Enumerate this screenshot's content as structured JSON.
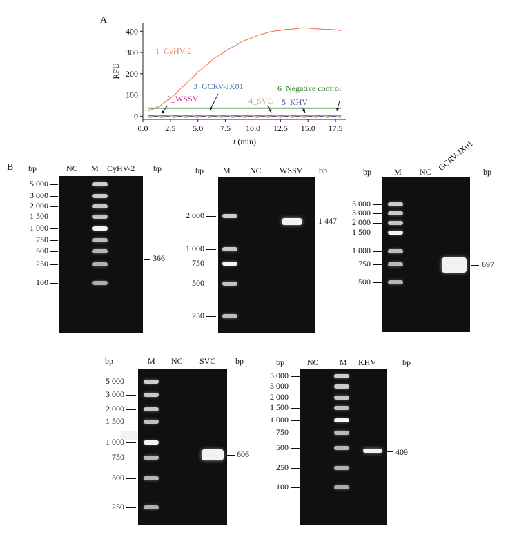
{
  "panel_a": {
    "letter": "A",
    "chart_data": {
      "type": "line",
      "ylabel": "RFU",
      "xlabel_var": "t",
      "xlabel_unit": " (min)",
      "xlim": [
        0,
        18.5
      ],
      "ylim": [
        -15,
        440
      ],
      "xticks": [
        0.0,
        2.5,
        5.0,
        7.5,
        10.0,
        12.5,
        15.0,
        17.5
      ],
      "xtick_labels": [
        "0.0",
        "2.5",
        "5.0",
        "7.5",
        "10.0",
        "12.5",
        "15.0",
        "17.5"
      ],
      "yticks": [
        0,
        100,
        200,
        300,
        400
      ],
      "ytick_labels": [
        "0",
        "100",
        "200",
        "300",
        "400"
      ],
      "series": [
        {
          "name": "1_CyHV-2",
          "color": "#f07a52",
          "x": [
            0.5,
            1,
            1.5,
            2,
            2.5,
            3,
            3.5,
            4,
            4.5,
            5,
            5.5,
            6,
            6.5,
            7,
            7.5,
            8,
            8.5,
            9,
            9.5,
            10,
            10.5,
            11,
            11.5,
            12,
            12.5,
            13,
            13.5,
            14,
            14.5,
            15,
            15.5,
            16,
            16.5,
            17,
            17.5,
            18
          ],
          "y": [
            25,
            35,
            48,
            65,
            85,
            108,
            132,
            158,
            182,
            207,
            230,
            252,
            272,
            290,
            306,
            322,
            336,
            350,
            362,
            372,
            381,
            390,
            396,
            401,
            405,
            408,
            410,
            413,
            415,
            416,
            412,
            410,
            410,
            408,
            406,
            404
          ]
        },
        {
          "name": "2_WSSV",
          "color": "#c2308a",
          "x": [
            0.5,
            18
          ],
          "y": [
            2,
            2
          ]
        },
        {
          "name": "3_GCRV-JX01",
          "color": "#4c79b5",
          "x": [
            0.5,
            18
          ],
          "y": [
            4,
            4
          ]
        },
        {
          "name": "4_SVC",
          "color": "#b8a89a",
          "x": [
            0.5,
            18
          ],
          "y": [
            1,
            1
          ]
        },
        {
          "name": "5_KHV",
          "color": "#5a3f95",
          "x": [
            0.5,
            18
          ],
          "y": [
            -3,
            -3
          ]
        },
        {
          "name": "6_Negative control",
          "color": "#2d7d2d",
          "x": [
            0.5,
            18
          ],
          "y": [
            38,
            38
          ]
        }
      ]
    }
  },
  "panel_b": {
    "letter": "B",
    "gels": [
      {
        "id": "cyhv2",
        "left_bp": "bp",
        "right_bp": "bp",
        "lanes": [
          "NC",
          "M",
          "CyHV-2"
        ],
        "markers": [
          "5 000",
          "3 000",
          "2 000",
          "1 500",
          "1 000",
          "750",
          "500",
          "250",
          "100"
        ],
        "product": "366"
      },
      {
        "id": "wssv",
        "left_bp": "bp",
        "right_bp": "bp",
        "lanes": [
          "M",
          "NC",
          "WSSV"
        ],
        "markers": [
          "2 000",
          "1 000",
          "750",
          "500",
          "250"
        ],
        "product": "1 447"
      },
      {
        "id": "gcrv",
        "left_bp": "bp",
        "right_bp": "bp",
        "lanes": [
          "M",
          "NC",
          "GCRV-JX01"
        ],
        "markers": [
          "5 000",
          "3 000",
          "2 000",
          "1 500",
          "1 000",
          "750",
          "500"
        ],
        "product": "697"
      },
      {
        "id": "svc",
        "left_bp": "bp",
        "right_bp": "bp",
        "lanes": [
          "M",
          "NC",
          "SVC"
        ],
        "markers": [
          "5 000",
          "3 000",
          "2 000",
          "1 500",
          "1 000",
          "750",
          "500",
          "250"
        ],
        "product": "606"
      },
      {
        "id": "khv",
        "left_bp": "bp",
        "right_bp": "bp",
        "lanes": [
          "NC",
          "M",
          "KHV"
        ],
        "markers": [
          "5 000",
          "3 000",
          "2 000",
          "1 500",
          "1 000",
          "750",
          "500",
          "250",
          "100"
        ],
        "product": "409"
      }
    ]
  }
}
